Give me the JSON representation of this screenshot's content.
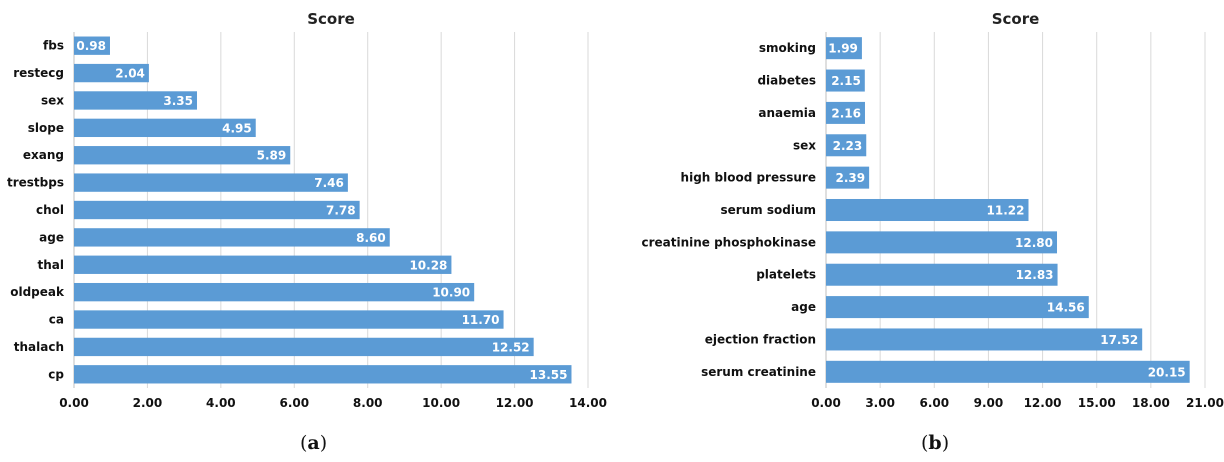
{
  "chart_data": [
    {
      "type": "bar",
      "orientation": "horizontal",
      "title": "Score",
      "caption_letter": "a",
      "categories": [
        "fbs",
        "restecg",
        "sex",
        "slope",
        "exang",
        "trestbps",
        "chol",
        "age",
        "thal",
        "oldpeak",
        "ca",
        "thalach",
        "cp"
      ],
      "values": [
        0.98,
        2.04,
        3.35,
        4.95,
        5.89,
        7.46,
        7.78,
        8.6,
        10.28,
        10.9,
        11.7,
        12.52,
        13.55
      ],
      "value_labels": [
        "0.98",
        "2.04",
        "3.35",
        "4.95",
        "5.89",
        "7.46",
        "7.78",
        "8.60",
        "10.28",
        "10.90",
        "11.70",
        "12.52",
        "13.55"
      ],
      "xlim": [
        0,
        14
      ],
      "xticks": [
        "0.00",
        "2.00",
        "4.00",
        "6.00",
        "8.00",
        "10.00",
        "12.00",
        "14.00"
      ],
      "xtick_values": [
        0,
        2,
        4,
        6,
        8,
        10,
        12,
        14
      ],
      "bar_color": "#5b9bd5",
      "grid": true
    },
    {
      "type": "bar",
      "orientation": "horizontal",
      "title": "Score",
      "caption_letter": "b",
      "categories": [
        "smoking",
        "diabetes",
        "anaemia",
        "sex",
        "high blood pressure",
        "serum sodium",
        "creatinine phosphokinase",
        "platelets",
        "age",
        "ejection fraction",
        "serum creatinine"
      ],
      "values": [
        1.99,
        2.15,
        2.16,
        2.23,
        2.39,
        11.22,
        12.8,
        12.83,
        14.56,
        17.52,
        20.15
      ],
      "value_labels": [
        "1.99",
        "2.15",
        "2.16",
        "2.23",
        "2.39",
        "11.22",
        "12.80",
        "12.83",
        "14.56",
        "17.52",
        "20.15"
      ],
      "xlim": [
        0,
        21
      ],
      "xticks": [
        "0.00",
        "3.00",
        "6.00",
        "9.00",
        "12.00",
        "15.00",
        "18.00",
        "21.00"
      ],
      "xtick_values": [
        0,
        3,
        6,
        9,
        12,
        15,
        18,
        21
      ],
      "bar_color": "#5b9bd5",
      "grid": true
    }
  ]
}
